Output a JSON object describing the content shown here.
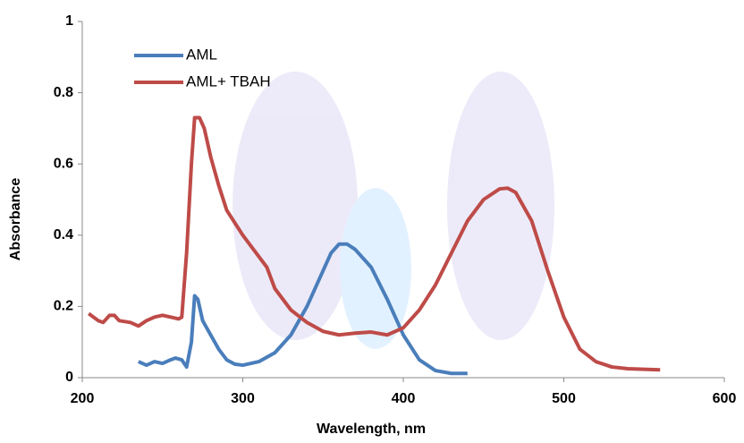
{
  "chart_data": {
    "type": "line",
    "x_label": "Wavelength, nm",
    "y_label": "Absorbance",
    "xlim": [
      200,
      600
    ],
    "xticks": [
      200,
      300,
      400,
      500,
      600
    ],
    "ylim": [
      0,
      1
    ],
    "yticks": [
      0,
      0.2,
      0.4,
      0.6,
      0.8,
      1
    ],
    "grid": false,
    "legend": "upper left",
    "series": [
      {
        "name": "AML",
        "color": "#4a7ebb",
        "x": [
          235,
          240,
          245,
          250,
          255,
          258,
          262,
          265,
          268,
          270,
          272,
          275,
          280,
          285,
          290,
          295,
          300,
          310,
          320,
          330,
          340,
          350,
          355,
          360,
          365,
          370,
          380,
          390,
          400,
          410,
          420,
          430,
          440
        ],
        "values": [
          0.045,
          0.035,
          0.045,
          0.04,
          0.05,
          0.055,
          0.05,
          0.03,
          0.1,
          0.23,
          0.22,
          0.16,
          0.12,
          0.08,
          0.05,
          0.038,
          0.035,
          0.045,
          0.07,
          0.12,
          0.2,
          0.3,
          0.35,
          0.375,
          0.375,
          0.36,
          0.31,
          0.22,
          0.12,
          0.05,
          0.02,
          0.012,
          0.012
        ]
      },
      {
        "name": "AML+ TBAH",
        "color": "#be4b48",
        "x": [
          204,
          210,
          213,
          217,
          220,
          223,
          230,
          235,
          240,
          245,
          250,
          255,
          260,
          262,
          265,
          268,
          270,
          273,
          276,
          280,
          285,
          290,
          300,
          310,
          315,
          320,
          330,
          340,
          350,
          360,
          370,
          380,
          390,
          400,
          410,
          420,
          430,
          440,
          450,
          460,
          465,
          470,
          480,
          490,
          500,
          510,
          520,
          530,
          540,
          560
        ],
        "values": [
          0.18,
          0.16,
          0.155,
          0.175,
          0.175,
          0.16,
          0.155,
          0.145,
          0.16,
          0.17,
          0.175,
          0.17,
          0.165,
          0.17,
          0.35,
          0.6,
          0.73,
          0.73,
          0.7,
          0.62,
          0.54,
          0.47,
          0.4,
          0.34,
          0.31,
          0.25,
          0.19,
          0.155,
          0.13,
          0.12,
          0.125,
          0.128,
          0.12,
          0.14,
          0.19,
          0.26,
          0.35,
          0.44,
          0.5,
          0.53,
          0.532,
          0.52,
          0.44,
          0.3,
          0.17,
          0.08,
          0.045,
          0.03,
          0.025,
          0.022
        ]
      }
    ]
  }
}
